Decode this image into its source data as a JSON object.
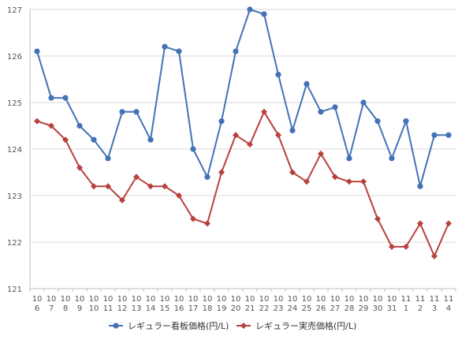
{
  "chart_data": {
    "type": "line",
    "title": "",
    "xlabel": "",
    "ylabel": "",
    "ylim": [
      121,
      127
    ],
    "yticks": [
      121,
      122,
      123,
      124,
      125,
      126,
      127
    ],
    "grid": true,
    "legend_position": "bottom",
    "categories": [
      {
        "month": "10",
        "day": "6"
      },
      {
        "month": "10",
        "day": "7"
      },
      {
        "month": "10",
        "day": "8"
      },
      {
        "month": "10",
        "day": "9"
      },
      {
        "month": "10",
        "day": "10"
      },
      {
        "month": "10",
        "day": "11"
      },
      {
        "month": "10",
        "day": "12"
      },
      {
        "month": "10",
        "day": "13"
      },
      {
        "month": "10",
        "day": "14"
      },
      {
        "month": "10",
        "day": "15"
      },
      {
        "month": "10",
        "day": "16"
      },
      {
        "month": "10",
        "day": "17"
      },
      {
        "month": "10",
        "day": "18"
      },
      {
        "month": "10",
        "day": "19"
      },
      {
        "month": "10",
        "day": "20"
      },
      {
        "month": "10",
        "day": "21"
      },
      {
        "month": "10",
        "day": "22"
      },
      {
        "month": "10",
        "day": "23"
      },
      {
        "month": "10",
        "day": "24"
      },
      {
        "month": "10",
        "day": "25"
      },
      {
        "month": "10",
        "day": "26"
      },
      {
        "month": "10",
        "day": "27"
      },
      {
        "month": "10",
        "day": "28"
      },
      {
        "month": "10",
        "day": "29"
      },
      {
        "month": "10",
        "day": "30"
      },
      {
        "month": "10",
        "day": "31"
      },
      {
        "month": "11",
        "day": "1"
      },
      {
        "month": "11",
        "day": "2"
      },
      {
        "month": "11",
        "day": "3"
      },
      {
        "month": "11",
        "day": "4"
      }
    ],
    "series": [
      {
        "name": "レギュラー看板価格(円/L)",
        "color": "#4372b6",
        "marker": "circle",
        "values": [
          126.1,
          125.1,
          125.1,
          124.5,
          124.2,
          123.8,
          124.8,
          124.8,
          124.2,
          126.2,
          126.1,
          124.0,
          123.4,
          124.6,
          126.1,
          127.0,
          126.9,
          125.6,
          124.4,
          125.4,
          124.8,
          124.9,
          123.8,
          125.0,
          124.6,
          123.8,
          124.6,
          123.2,
          124.3,
          124.3
        ]
      },
      {
        "name": "レギュラー実売価格(円/L)",
        "color": "#b8403d",
        "marker": "diamond",
        "values": [
          124.6,
          124.5,
          124.2,
          123.6,
          123.2,
          123.2,
          122.9,
          123.4,
          123.2,
          123.2,
          123.0,
          122.5,
          122.4,
          123.5,
          124.3,
          124.1,
          124.8,
          124.3,
          123.5,
          123.3,
          123.9,
          123.4,
          123.3,
          123.3,
          122.5,
          121.9,
          121.9,
          122.4,
          121.7,
          122.4
        ]
      }
    ]
  }
}
